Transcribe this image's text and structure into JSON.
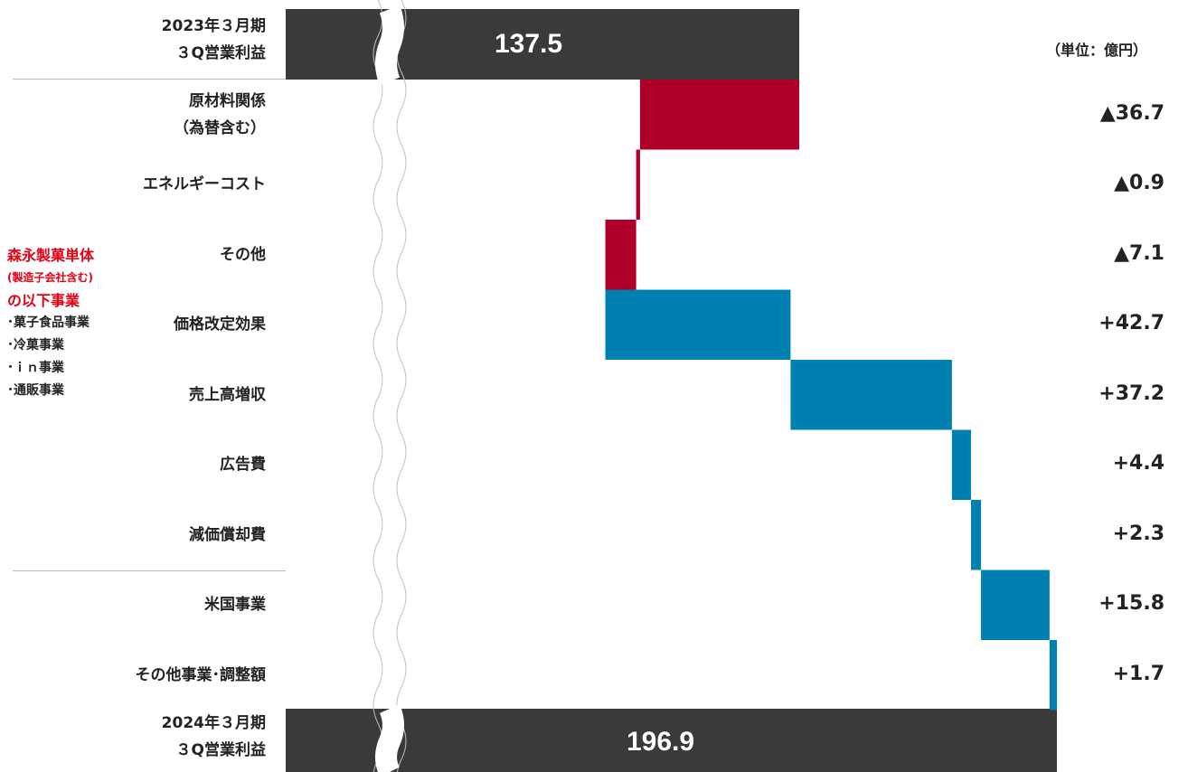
{
  "unit": "（単位：億円）",
  "start": {
    "label": "2023年３月期\n３Q営業利益",
    "value": 137.5,
    "value_text": "137.5"
  },
  "end": {
    "label": "2024年３月期\n３Q営業利益",
    "value": 196.9,
    "value_text": "196.9"
  },
  "side_note": {
    "title_lines": [
      "森永製菓単体",
      "(製造子会社含む)",
      "の以下事業"
    ],
    "items": [
      "･菓子食品事業",
      "･冷菓事業",
      "･ｉｎ事業",
      "･通販事業"
    ]
  },
  "chart_data": {
    "type": "bar",
    "orientation": "horizontal",
    "subtype": "waterfall",
    "axis_break": true,
    "unit": "億円",
    "start": {
      "category": "2023年３月期３Q営業利益",
      "value": 137.5
    },
    "end": {
      "category": "2024年３月期３Q営業利益",
      "value": 196.9
    },
    "categories": [
      "原材料関係\n（為替含む）",
      "エネルギーコスト",
      "その他",
      "価格改定効果",
      "売上高増収",
      "広告費",
      "減価償却費",
      "米国事業",
      "その他事業･調整額"
    ],
    "values": [
      -36.7,
      -0.9,
      -7.1,
      42.7,
      37.2,
      4.4,
      2.3,
      15.8,
      1.7
    ],
    "value_labels": [
      "▲36.7",
      "▲0.9",
      "▲7.1",
      "+42.7",
      "+37.2",
      "+4.4",
      "+2.3",
      "+15.8",
      "+1.7"
    ],
    "colors": {
      "decrease": "#b0002a",
      "increase": "#0080b0",
      "total": "#3a3a3a"
    }
  }
}
